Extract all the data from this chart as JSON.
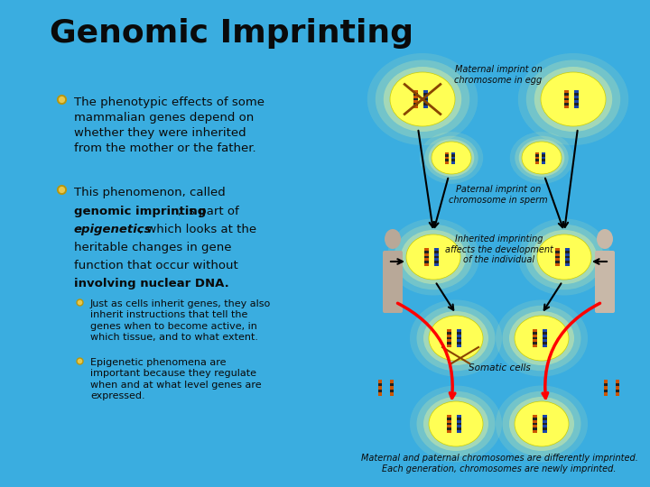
{
  "title": "Genomic Imprinting",
  "bg_color": "#3aade0",
  "title_color": "#0a0a0a",
  "title_fontsize": 26,
  "label_maternal": "Maternal imprint on\nchromosome in egg",
  "label_paternal": "Paternal imprint on\nchromosome in sperm",
  "label_inherited": "Inherited imprinting\naffects the development\nof the individual",
  "label_somatic": "Somatic cells",
  "label_bottom": "Maternal and paternal chromosomes are differently imprinted.\nEach generation, chromosomes are newly imprinted.",
  "text_color": "#0a0a0a",
  "label_color": "#0a0a0a",
  "chr_orange": "#cc5500",
  "chr_blue": "#1a44aa",
  "chr_dark": "#222222",
  "yellow_circle": "#ffff55",
  "yellow_glow": "#ffff99"
}
